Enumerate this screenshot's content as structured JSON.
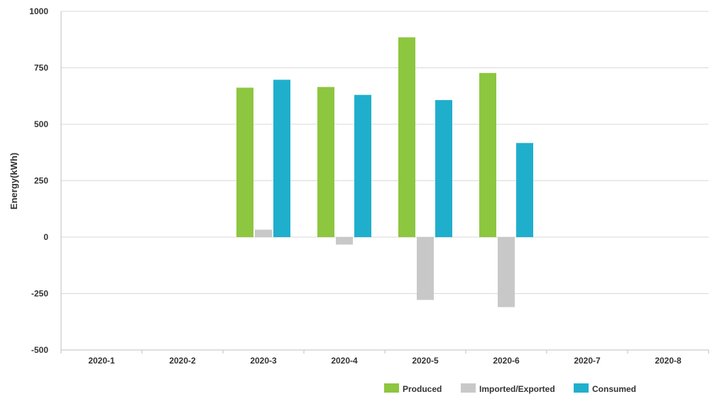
{
  "chart_data": {
    "type": "bar",
    "title": "",
    "xlabel": "",
    "ylabel": "Energy(kWh)",
    "ylim": [
      -500,
      1000
    ],
    "yticks": [
      1000,
      750,
      500,
      250,
      0,
      -250,
      -500
    ],
    "grid": true,
    "legend_position": "bottom-right",
    "categories": [
      "2020-1",
      "2020-2",
      "2020-3",
      "2020-4",
      "2020-5",
      "2020-6",
      "2020-7",
      "2020-8"
    ],
    "series": [
      {
        "name": "Produced",
        "color": "#8dc63f",
        "values": [
          null,
          null,
          662,
          665,
          885,
          727,
          null,
          null
        ]
      },
      {
        "name": "Imported/Exported",
        "color": "#c8c8c8",
        "values": [
          null,
          null,
          33,
          -33,
          -278,
          -310,
          null,
          null
        ]
      },
      {
        "name": "Consumed",
        "color": "#1fafcc",
        "values": [
          null,
          null,
          697,
          630,
          607,
          417,
          null,
          null
        ]
      }
    ]
  }
}
